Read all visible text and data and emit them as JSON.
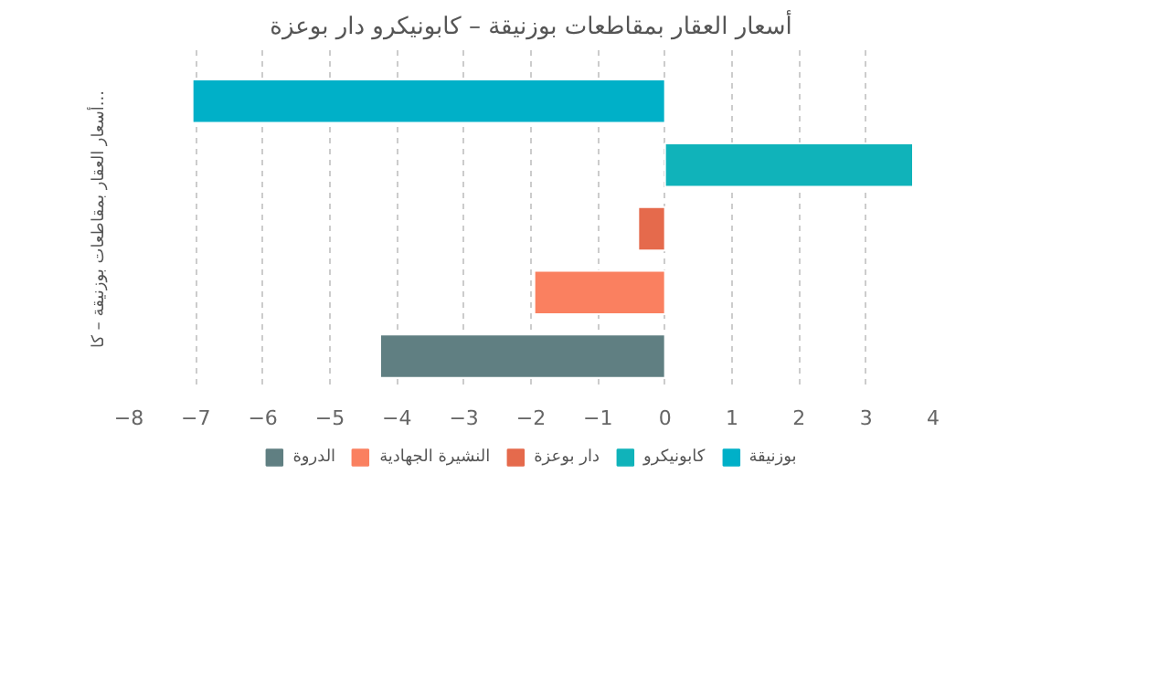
{
  "chart_data": {
    "type": "bar",
    "orientation": "horizontal",
    "title": "أسعار العقار بمقاطعات بوزنيقة – كابونيكرو دار بوعزة",
    "ylabel": "أسعار العقار بمقاطعات بوزنيقة – كا...",
    "categories": [
      null,
      null,
      null,
      null,
      null
    ],
    "series": [
      {
        "name": "بوزنيقة",
        "color": "#00b0c8",
        "values": [
          -7.05,
          null,
          null,
          null,
          null
        ]
      },
      {
        "name": "كابونيكرو",
        "color": "#10b3ba",
        "values": [
          null,
          3.7,
          null,
          null,
          null
        ]
      },
      {
        "name": "دار بوعزة",
        "color": "#e56a4c",
        "values": [
          null,
          null,
          -0.4,
          null,
          null
        ]
      },
      {
        "name": "النشيرة الجهادية",
        "color": "#fa8060",
        "values": [
          null,
          null,
          null,
          -1.95,
          null
        ]
      },
      {
        "name": "الدروة",
        "color": "#607f82",
        "values": [
          null,
          null,
          null,
          null,
          -4.25
        ]
      }
    ],
    "xlim": [
      -8,
      4
    ],
    "xticks": [
      -8,
      -7,
      -6,
      -5,
      -4,
      -3,
      -2,
      -1,
      0,
      1,
      2,
      3,
      4
    ],
    "grid": "x",
    "legend": "bottom"
  }
}
